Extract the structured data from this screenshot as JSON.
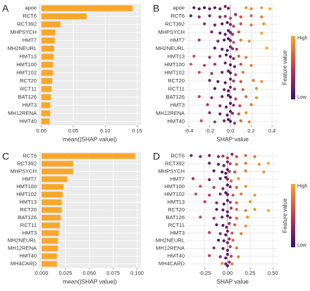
{
  "chart_data": [
    {
      "type": "bar",
      "label": "A",
      "xlabel": "mean(|SHAP value|)",
      "color": "#f7a72b",
      "categories": [
        "apoe",
        "RCT6",
        "RCT392",
        "MHPSYCH",
        "HMT7",
        "MH2NEURL",
        "HMT13",
        "HMT100",
        "HMT102",
        "RCT20",
        "RCT11",
        "BAT126",
        "HMT3",
        "MH12RENA",
        "HMT40"
      ],
      "values": [
        0.143,
        0.071,
        0.03,
        0.022,
        0.021,
        0.02,
        0.019,
        0.018,
        0.018,
        0.017,
        0.016,
        0.015,
        0.014,
        0.014,
        0.013
      ],
      "xlim": [
        -0.004,
        0.156
      ],
      "xticks": [
        {
          "value": 0,
          "label": "0.00"
        },
        0.05,
        {
          "value": 0.1,
          "label": "0.10"
        },
        0.15
      ],
      "grid": true
    },
    {
      "type": "beeswarm",
      "label": "B",
      "xlabel": "SHAP value",
      "xlim": [
        -0.42,
        0.46
      ],
      "xticks": [
        -0.4,
        -0.2,
        {
          "value": 0,
          "label": "0.0"
        },
        0.2,
        0.4
      ],
      "colorbar": {
        "title": "Feature value",
        "high": "High",
        "low": "Low",
        "colors": [
          "#3b0f70",
          "#c13a50",
          "#f9a825"
        ]
      },
      "series": [
        {
          "name": "apoe",
          "values": [
            -0.35,
            -0.3,
            -0.25,
            -0.2,
            -0.15,
            -0.1,
            -0.05,
            -0.02,
            0.15,
            0.2,
            0.3,
            0.38
          ],
          "feature_values": [
            0.1,
            0.1,
            0.05,
            0.1,
            0.1,
            0.15,
            0.2,
            0.2,
            0.9,
            0.85,
            0.95,
            1
          ]
        },
        {
          "name": "RCT6",
          "values": [
            -0.38,
            -0.3,
            -0.2,
            -0.1,
            -0.05,
            0,
            0.05,
            0.1,
            0.2,
            0.3
          ],
          "feature_values": [
            0.2,
            0.3,
            0.2,
            0.3,
            0.4,
            0.5,
            0.3,
            0.6,
            0.7,
            0.8
          ]
        },
        {
          "name": "RCT392",
          "values": [
            -0.25,
            -0.15,
            -0.08,
            -0.03,
            0,
            0.03,
            0.1,
            0.2,
            0.32
          ],
          "feature_values": [
            0.3,
            0.2,
            0.1,
            0.1,
            0.2,
            0.5,
            0.6,
            0.8,
            0.9
          ]
        },
        {
          "name": "MHPSYCH",
          "values": [
            -0.18,
            -0.1,
            -0.05,
            -0.02,
            0,
            0.02,
            0.08,
            0.3
          ],
          "feature_values": [
            0.2,
            0.1,
            0.1,
            0.1,
            0.2,
            0.4,
            0.6,
            0.95
          ]
        },
        {
          "name": "HMT7",
          "values": [
            -0.3,
            -0.12,
            -0.06,
            -0.02,
            0,
            0.03,
            0.1,
            0.18
          ],
          "feature_values": [
            0.4,
            0.2,
            0.1,
            0.1,
            0.2,
            0.6,
            0.8,
            0.9
          ]
        },
        {
          "name": "MH2NEURL",
          "values": [
            -0.15,
            -0.08,
            -0.03,
            0,
            0.02,
            0.06,
            0.35
          ],
          "feature_values": [
            0.1,
            0.1,
            0.1,
            0.2,
            0.3,
            0.5,
            1
          ]
        },
        {
          "name": "HMT13",
          "values": [
            -0.35,
            -0.2,
            -0.1,
            -0.04,
            0,
            0.03,
            0.08,
            0.15
          ],
          "feature_values": [
            0.6,
            0.4,
            0.3,
            0.1,
            0.1,
            0.3,
            0.7,
            0.8
          ]
        },
        {
          "name": "HMT100",
          "values": [
            -0.38,
            -0.25,
            -0.15,
            -0.05,
            0,
            0.04,
            0.1,
            0.2
          ],
          "feature_values": [
            0.7,
            0.5,
            0.4,
            0.2,
            0.1,
            0.2,
            0.6,
            0.8
          ]
        },
        {
          "name": "HMT102",
          "values": [
            -0.3,
            -0.18,
            -0.08,
            -0.02,
            0,
            0.05,
            0.12
          ],
          "feature_values": [
            0.6,
            0.4,
            0.2,
            0.1,
            0.1,
            0.5,
            0.8
          ]
        },
        {
          "name": "RCT20",
          "values": [
            -0.2,
            -0.12,
            -0.05,
            0,
            0.03,
            0.1,
            0.22,
            0.3
          ],
          "feature_values": [
            0.2,
            0.1,
            0.1,
            0.2,
            0.4,
            0.6,
            0.8,
            0.9
          ]
        },
        {
          "name": "RCT11",
          "values": [
            -0.15,
            -0.06,
            -0.02,
            0,
            0.04,
            0.12,
            0.25
          ],
          "feature_values": [
            0.1,
            0.2,
            0.1,
            0.2,
            0.5,
            0.7,
            0.9
          ]
        },
        {
          "name": "BAT126",
          "values": [
            -0.3,
            -0.18,
            -0.08,
            -0.02,
            0,
            0.05,
            0.15,
            0.25
          ],
          "feature_values": [
            0.5,
            0.3,
            0.2,
            0.1,
            0.1,
            0.5,
            0.7,
            0.9
          ]
        },
        {
          "name": "HMT3",
          "values": [
            -0.22,
            -0.1,
            -0.04,
            0,
            0.03,
            0.09,
            0.2
          ],
          "feature_values": [
            0.4,
            0.3,
            0.1,
            0.1,
            0.3,
            0.6,
            0.8
          ]
        },
        {
          "name": "MH12RENA",
          "values": [
            -0.2,
            -0.1,
            -0.03,
            0,
            0.02,
            0.08,
            0.15
          ],
          "feature_values": [
            0.3,
            0.2,
            0.1,
            0.1,
            0.3,
            0.6,
            0.9
          ]
        },
        {
          "name": "HMT40",
          "values": [
            -0.28,
            -0.15,
            -0.06,
            -0.02,
            0,
            0.04,
            0.1,
            0.18
          ],
          "feature_values": [
            0.6,
            0.4,
            0.2,
            0.1,
            0.1,
            0.4,
            0.7,
            0.8
          ]
        }
      ]
    },
    {
      "type": "bar",
      "label": "C",
      "xlabel": "mean(|SHAP value|)",
      "color": "#f7a72b",
      "categories": [
        "RCT6",
        "RCT392",
        "MHPSYCH",
        "HMT7",
        "HMT100",
        "HMT102",
        "HMT13",
        "RCT20",
        "BAT126",
        "RCT11",
        "HMT3",
        "MH2NEURL",
        "MH12RENA",
        "HMT40",
        "MH4CARD"
      ],
      "values": [
        0.098,
        0.033,
        0.033,
        0.027,
        0.023,
        0.022,
        0.021,
        0.021,
        0.02,
        0.019,
        0.018,
        0.017,
        0.017,
        0.016,
        0.016
      ],
      "xlim": [
        -0.003,
        0.104
      ],
      "xticks": [
        {
          "value": 0,
          "label": "0.000"
        },
        0.025,
        {
          "value": 0.05,
          "label": "0.050"
        },
        0.075,
        {
          "value": 0.1,
          "label": "0.100"
        }
      ],
      "grid": true
    },
    {
      "type": "beeswarm",
      "label": "D",
      "xlabel": "SHAP value",
      "xlim": [
        -0.45,
        0.56
      ],
      "xticks": [
        -0.25,
        {
          "value": 0,
          "label": "0.00"
        },
        0.25,
        {
          "value": 0.5,
          "label": "0.50"
        }
      ],
      "colorbar": {
        "title": "Feature value",
        "high": "High",
        "low": "Low",
        "colors": [
          "#3b0f70",
          "#c13a50",
          "#f9a825"
        ]
      },
      "series": [
        {
          "name": "RCT6",
          "values": [
            -0.4,
            -0.3,
            -0.2,
            -0.1,
            -0.05,
            0,
            0.05,
            0.1,
            0.2,
            0.3
          ],
          "feature_values": [
            0.2,
            0.3,
            0.2,
            0.3,
            0.4,
            0.5,
            0.3,
            0.6,
            0.7,
            0.8
          ]
        },
        {
          "name": "RCT392",
          "values": [
            -0.2,
            -0.1,
            -0.04,
            0,
            0.03,
            0.1,
            0.2,
            0.35,
            0.45
          ],
          "feature_values": [
            0.2,
            0.1,
            0.1,
            0.2,
            0.5,
            0.7,
            0.8,
            0.9,
            1
          ]
        },
        {
          "name": "MHPSYCH",
          "values": [
            -0.15,
            -0.06,
            -0.02,
            0,
            0.02,
            0.08,
            0.2,
            0.4
          ],
          "feature_values": [
            0.1,
            0.1,
            0.1,
            0.2,
            0.4,
            0.6,
            0.8,
            0.95
          ]
        },
        {
          "name": "HMT7",
          "values": [
            -0.38,
            -0.2,
            -0.08,
            -0.02,
            0,
            0.04,
            0.12
          ],
          "feature_values": [
            0.4,
            0.2,
            0.1,
            0.1,
            0.3,
            0.7,
            0.9
          ]
        },
        {
          "name": "HMT100",
          "values": [
            -0.3,
            -0.15,
            -0.05,
            0,
            0.03,
            0.1,
            0.2
          ],
          "feature_values": [
            0.6,
            0.5,
            0.2,
            0.1,
            0.3,
            0.7,
            0.9
          ]
        },
        {
          "name": "HMT102",
          "values": [
            -0.35,
            -0.2,
            -0.08,
            -0.02,
            0,
            0.06,
            0.15,
            0.3
          ],
          "feature_values": [
            0.6,
            0.5,
            0.3,
            0.1,
            0.1,
            0.6,
            0.8,
            0.9
          ]
        },
        {
          "name": "HMT13",
          "values": [
            -0.25,
            -0.12,
            -0.04,
            0,
            0.03,
            0.1,
            0.25
          ],
          "feature_values": [
            0.5,
            0.3,
            0.1,
            0.1,
            0.4,
            0.7,
            0.9
          ]
        },
        {
          "name": "RCT20",
          "values": [
            -0.12,
            -0.05,
            0,
            0.04,
            0.1,
            0.2,
            0.3,
            0.45
          ],
          "feature_values": [
            0.1,
            0.1,
            0.2,
            0.4,
            0.7,
            0.8,
            0.9,
            1
          ]
        },
        {
          "name": "BAT126",
          "values": [
            -0.3,
            -0.15,
            -0.06,
            0,
            0.03,
            0.1,
            0.22
          ],
          "feature_values": [
            0.6,
            0.4,
            0.2,
            0.1,
            0.3,
            0.7,
            0.9
          ]
        },
        {
          "name": "RCT11",
          "values": [
            -0.12,
            -0.05,
            -0.01,
            0.02,
            0.08,
            0.2
          ],
          "feature_values": [
            0.1,
            0.1,
            0.2,
            0.4,
            0.7,
            0.9
          ]
        },
        {
          "name": "HMT3",
          "values": [
            -0.2,
            -0.08,
            -0.02,
            0,
            0.05,
            0.15
          ],
          "feature_values": [
            0.5,
            0.3,
            0.1,
            0.2,
            0.6,
            0.8
          ]
        },
        {
          "name": "MH2NEURL",
          "values": [
            -0.1,
            -0.04,
            0,
            0.02,
            0.06
          ],
          "feature_values": [
            0.1,
            0.1,
            0.2,
            0.4,
            0.7
          ]
        },
        {
          "name": "MH12RENA",
          "values": [
            -0.15,
            -0.05,
            0,
            0.03,
            0.1
          ],
          "feature_values": [
            0.3,
            0.1,
            0.2,
            0.5,
            0.8
          ]
        },
        {
          "name": "HMT40",
          "values": [
            -0.2,
            -0.08,
            -0.02,
            0,
            0.04,
            0.12
          ],
          "feature_values": [
            0.5,
            0.3,
            0.1,
            0.1,
            0.5,
            0.8
          ]
        },
        {
          "name": "MH4CARD",
          "values": [
            -0.06,
            -0.02,
            0,
            0.02,
            0.05
          ],
          "feature_values": [
            0.9,
            0.2,
            0.1,
            0.3,
            0.8
          ]
        }
      ]
    }
  ]
}
